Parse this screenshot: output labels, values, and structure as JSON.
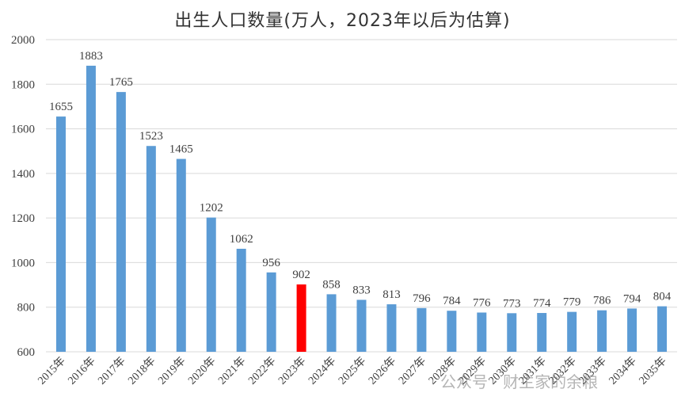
{
  "chart_data": {
    "type": "bar",
    "title": "出生人口数量(万人，2023年以后为估算)",
    "categories": [
      "2015年",
      "2016年",
      "2017年",
      "2018年",
      "2019年",
      "2020年",
      "2021年",
      "2022年",
      "2023年",
      "2024年",
      "2025年",
      "2026年",
      "2027年",
      "2028年",
      "2029年",
      "2030年",
      "2031年",
      "2032年",
      "2033年",
      "2034年",
      "2035年"
    ],
    "values": [
      1655,
      1883,
      1765,
      1523,
      1465,
      1202,
      1062,
      956,
      902,
      858,
      833,
      813,
      796,
      784,
      776,
      773,
      774,
      779,
      786,
      794,
      804
    ],
    "ylim": [
      600,
      2000
    ],
    "yticks": [
      600,
      800,
      1000,
      1200,
      1400,
      1600,
      1800,
      2000
    ],
    "grid": true,
    "xlabel": "",
    "ylabel": "",
    "colors": {
      "bar": "#5B9BD5",
      "highlight": "#FF0000",
      "grid": "#D9D9D9",
      "text": "#404040"
    },
    "highlight_category": "2023年"
  },
  "watermark": "公众号 · 财主家的余粮"
}
